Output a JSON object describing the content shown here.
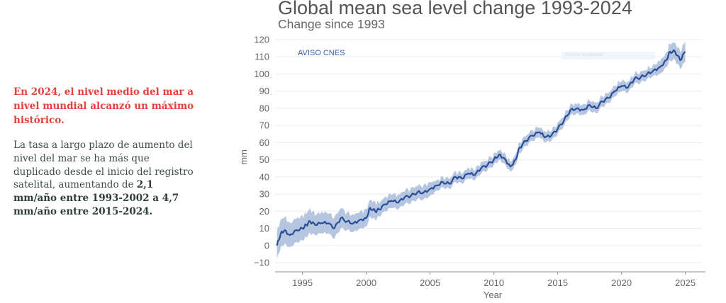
{
  "sidebar": {
    "headline": "En 2024, el nivel medio del mar a nivel mundial alcanzó un máximo histórico.",
    "body_plain": "La tasa a largo plazo de aumento del nivel del mar se ha más que duplicado desde el inicio del registro satelital, aumentando de ",
    "body_bold": "2,1 mm/año entre 1993-2002 a 4,7 mm/año entre 2015-2024."
  },
  "overlay": {
    "label": "Recorte rectangular"
  },
  "colors": {
    "line": "#2a4f96",
    "band": "#a9bcdc",
    "headline": "#e8403a",
    "grid": "#ebebeb"
  },
  "chart_data": {
    "type": "line",
    "title": "Global mean sea level change 1993-2024",
    "subtitle": "Change since 1993",
    "xlabel": "Year",
    "ylabel": "mm",
    "source_annotation": "AVISO CNES",
    "xlim": [
      1992.3,
      2026.3
    ],
    "ylim": [
      -10,
      120
    ],
    "xticks": [
      1995,
      2000,
      2005,
      2010,
      2015,
      2020,
      2025
    ],
    "yticks": [
      -10,
      0,
      10,
      20,
      30,
      40,
      50,
      60,
      70,
      80,
      90,
      100,
      110,
      120
    ],
    "grid": true,
    "legend": "none",
    "series": [
      {
        "name": "Global mean sea level (mm)",
        "x": [
          1993.0,
          1993.3,
          1993.6,
          1994.0,
          1994.5,
          1995.0,
          1995.3,
          1995.6,
          1996.0,
          1996.5,
          1997.0,
          1997.5,
          1998.0,
          1998.5,
          1999.0,
          1999.5,
          2000.0,
          2000.3,
          2000.7,
          2001.0,
          2001.5,
          2002.0,
          2002.5,
          2003.0,
          2003.5,
          2004.0,
          2004.5,
          2005.0,
          2005.5,
          2006.0,
          2006.5,
          2007.0,
          2007.5,
          2008.0,
          2008.5,
          2009.0,
          2009.5,
          2010.0,
          2010.4,
          2010.8,
          2011.3,
          2011.7,
          2012.0,
          2012.5,
          2013.0,
          2013.6,
          2014.0,
          2014.5,
          2015.0,
          2015.5,
          2016.0,
          2016.5,
          2017.0,
          2017.5,
          2018.0,
          2018.5,
          2019.0,
          2019.5,
          2020.0,
          2020.5,
          2021.0,
          2021.5,
          2022.0,
          2022.5,
          2023.0,
          2023.5,
          2023.8,
          2024.2,
          2024.6,
          2025.0
        ],
        "values": [
          0,
          7,
          9,
          6,
          9,
          10,
          12,
          14,
          12,
          13,
          13,
          10,
          16,
          14,
          13,
          15,
          16,
          22,
          20,
          21,
          24,
          26,
          25,
          28,
          29,
          31,
          31,
          33,
          35,
          37,
          36,
          40,
          39,
          42,
          41,
          45,
          47,
          50,
          53,
          51,
          46,
          50,
          57,
          61,
          64,
          66,
          63,
          64,
          68,
          73,
          79,
          80,
          79,
          82,
          80,
          84,
          86,
          90,
          93,
          92,
          97,
          98,
          100,
          102,
          104,
          108,
          113,
          113,
          108,
          113
        ],
        "uncertainty_mm": [
          8,
          8,
          8,
          7,
          7,
          7,
          7,
          7,
          6,
          6,
          6,
          6,
          6,
          5,
          5,
          5,
          5,
          5,
          5,
          4,
          4,
          4,
          4,
          4,
          4,
          4,
          4,
          4,
          3,
          3,
          3,
          3,
          3,
          3,
          3,
          3,
          3,
          3,
          3,
          3,
          3,
          3,
          3,
          3,
          3,
          3,
          3,
          3,
          3,
          3,
          3,
          3,
          3,
          3,
          3,
          3,
          3,
          3,
          3,
          3,
          3,
          3,
          3,
          3,
          4,
          4,
          5,
          5,
          5,
          6
        ]
      }
    ]
  }
}
